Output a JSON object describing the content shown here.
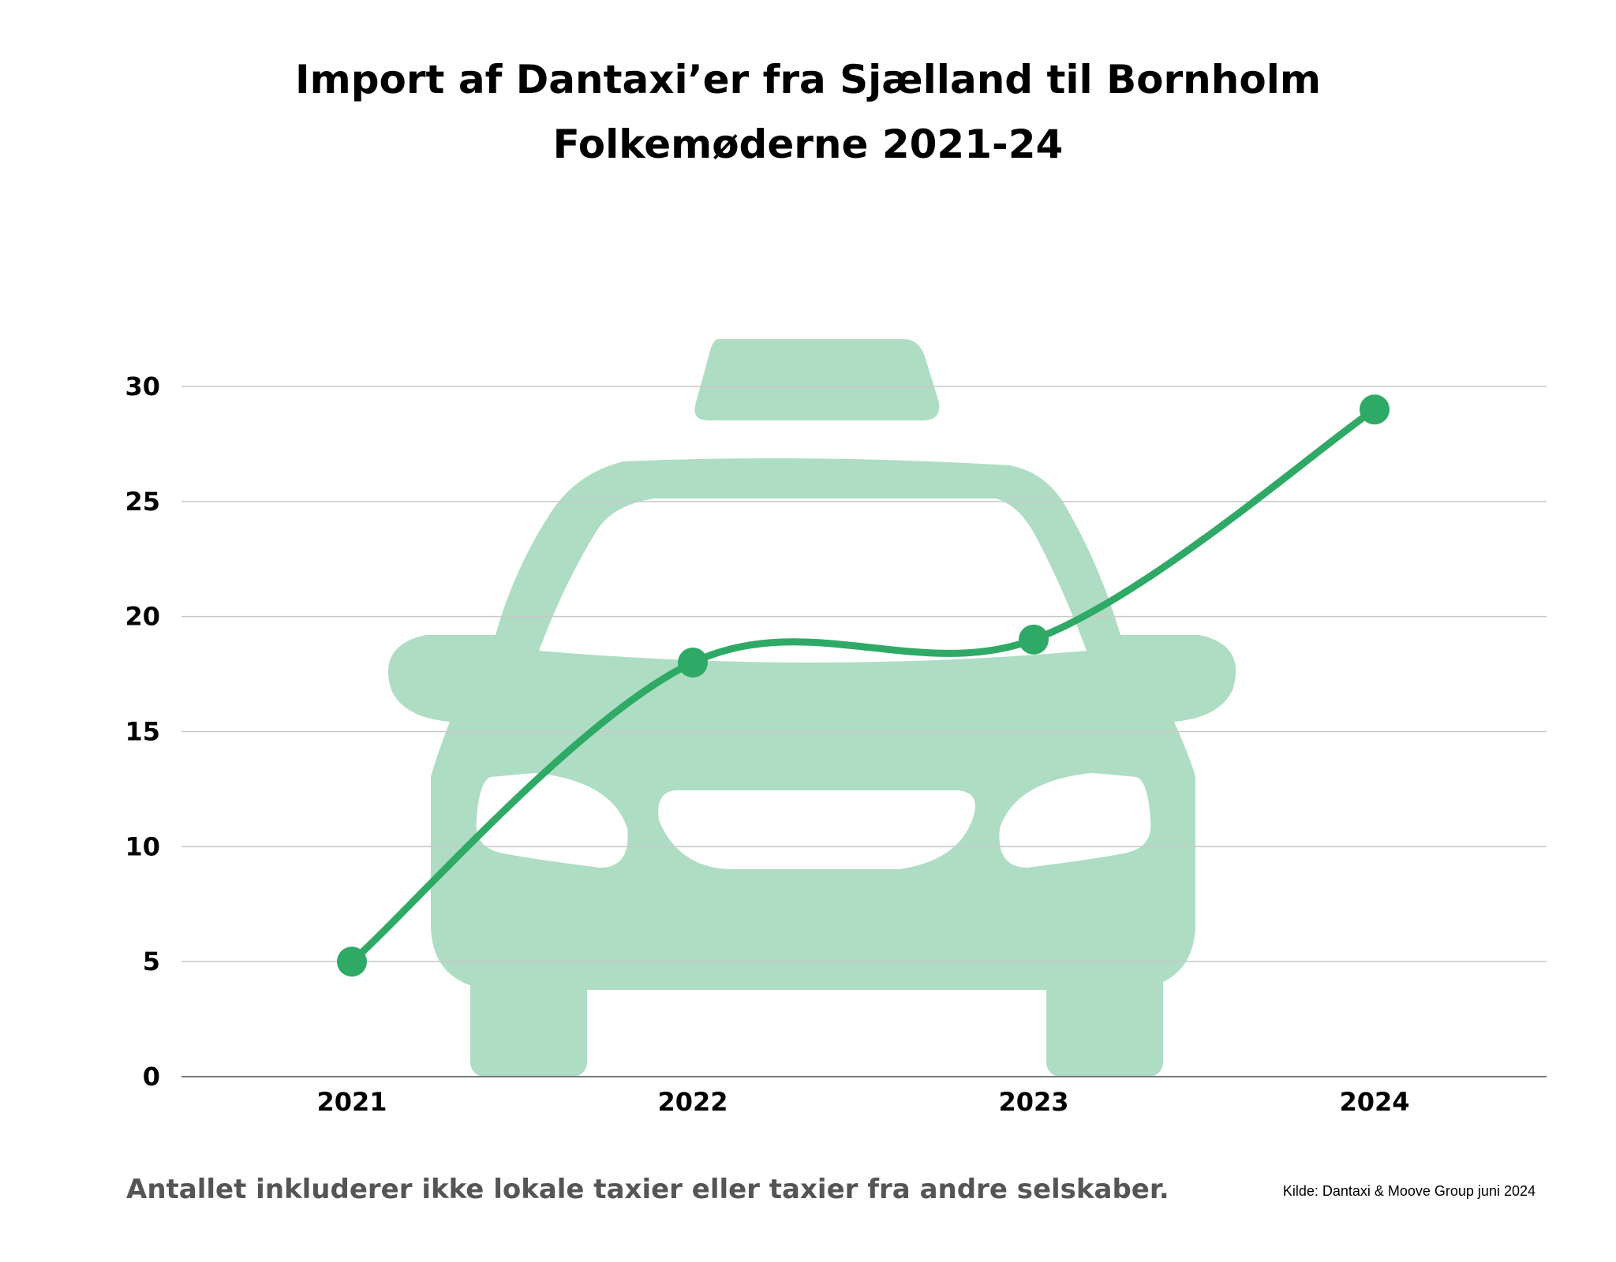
{
  "chart_data": {
    "type": "line",
    "title": "Import af Dantaxi’er fra Sjælland til Bornholm",
    "subtitle": "Folkemøderne 2021-24",
    "categories": [
      "2021",
      "2022",
      "2023",
      "2024"
    ],
    "series": [
      {
        "values": [
          5,
          18,
          19,
          29
        ]
      }
    ],
    "ylim": [
      0,
      30
    ],
    "yticks": [
      "0",
      "5",
      "10",
      "15",
      "20",
      "25",
      "30"
    ],
    "grid": true,
    "line_color": "#2EAA66",
    "illustration_color": "#AEDDC4",
    "illustration": "taxi-car-icon"
  },
  "note": "Antallet inkluderer ikke lokale taxier eller taxier fra andre selskaber.",
  "source": "Kilde: Dantaxi & Moove Group juni 2024"
}
